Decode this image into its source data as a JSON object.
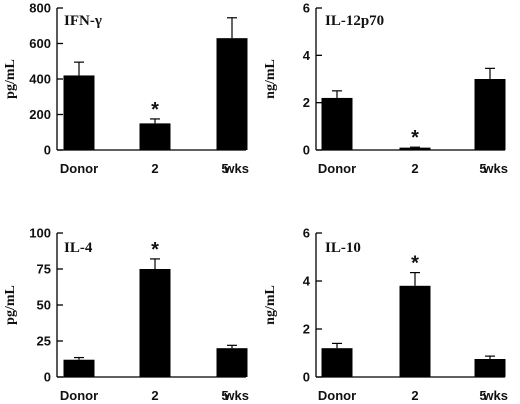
{
  "chart_data": [
    {
      "type": "bar",
      "title": "IFN-γ",
      "ylabel": "pg/mL",
      "categories": [
        "Donor",
        "2",
        "5"
      ],
      "x_unit_label": "wks",
      "values": [
        420,
        150,
        630
      ],
      "errors": [
        75,
        25,
        115
      ],
      "significant": [
        false,
        true,
        false
      ],
      "ylim": [
        0,
        800
      ],
      "yticks": [
        "0",
        "200",
        "400",
        "600",
        "800"
      ]
    },
    {
      "type": "bar",
      "title": "IL-12p70",
      "ylabel": "ng/mL",
      "categories": [
        "Donor",
        "2",
        "5"
      ],
      "x_unit_label": "wks",
      "values": [
        2.2,
        0.1,
        3.0
      ],
      "errors": [
        0.3,
        0.02,
        0.45
      ],
      "significant": [
        false,
        true,
        false
      ],
      "ylim": [
        0,
        6
      ],
      "yticks": [
        "0",
        "2",
        "4",
        "6"
      ]
    },
    {
      "type": "bar",
      "title": "IL-4",
      "ylabel": "pg/mL",
      "categories": [
        "Donor",
        "2",
        "5"
      ],
      "x_unit_label": "wks",
      "values": [
        12,
        75,
        20
      ],
      "errors": [
        1.5,
        7,
        2
      ],
      "significant": [
        false,
        true,
        false
      ],
      "ylim": [
        0,
        100
      ],
      "yticks": [
        "0",
        "25",
        "50",
        "75",
        "100"
      ]
    },
    {
      "type": "bar",
      "title": "IL-10",
      "ylabel": "ng/mL",
      "categories": [
        "Donor",
        "2",
        "5"
      ],
      "x_unit_label": "wks",
      "values": [
        1.2,
        3.8,
        0.75
      ],
      "errors": [
        0.2,
        0.55,
        0.12
      ],
      "significant": [
        false,
        true,
        false
      ],
      "ylim": [
        0,
        6
      ],
      "yticks": [
        "0",
        "2",
        "4",
        "6"
      ]
    }
  ],
  "significance_marker": "*",
  "colors": {
    "bar": "#000000",
    "axis": "#000000",
    "background": "#ffffff"
  }
}
